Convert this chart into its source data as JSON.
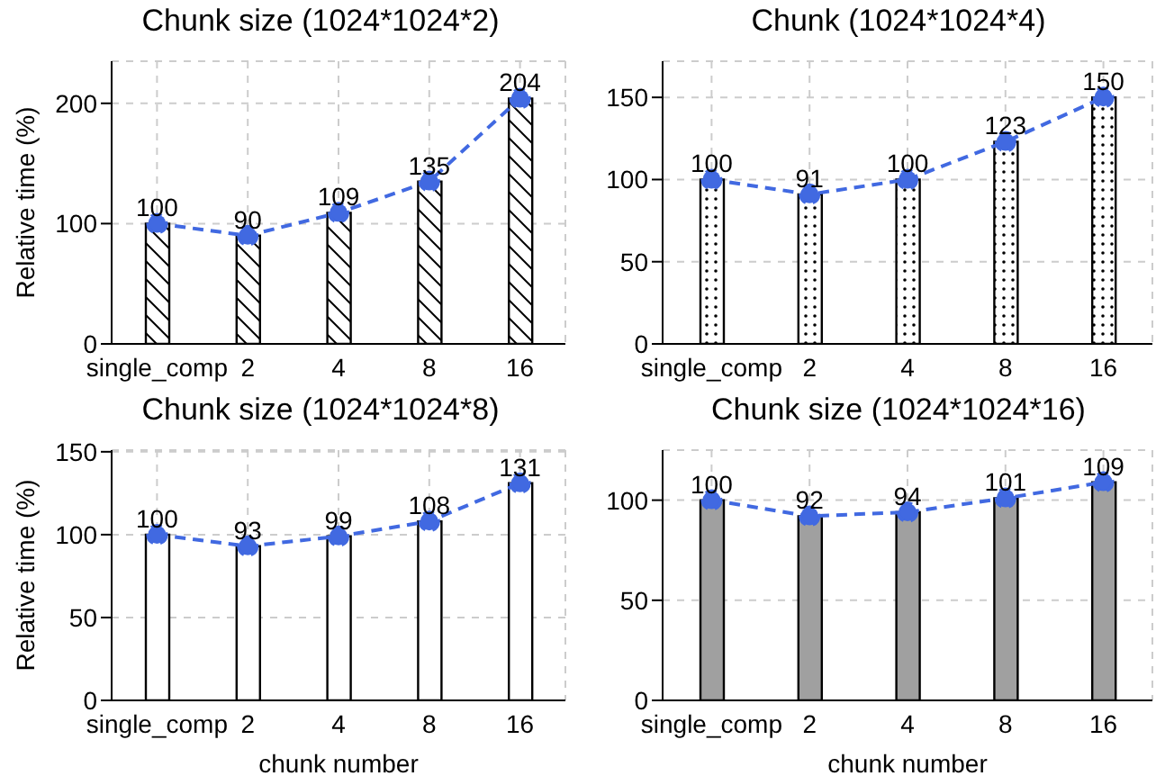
{
  "chart_data": [
    {
      "type": "bar",
      "title": "Chunk size (1024*1024*2)",
      "ylabel": "Relative time (%)",
      "categories": [
        "single_comp",
        "2",
        "4",
        "8",
        "16"
      ],
      "ylim": [
        0,
        235
      ],
      "yticks": [
        0,
        100,
        200
      ],
      "grid": true,
      "series": [
        {
          "color": "#000000",
          "values": [
            100,
            90,
            109,
            135,
            204
          ]
        },
        {
          "type": "line",
          "color": "#4169e1",
          "marker": "circle",
          "line_style": "dashed",
          "values": [
            100,
            90,
            109,
            135,
            204
          ],
          "value_labels": [
            "100",
            "90",
            "109",
            "135",
            "204"
          ]
        }
      ]
    },
    {
      "type": "bar",
      "title": "Chunk (1024*1024*4)",
      "categories": [
        "single_comp",
        "2",
        "4",
        "8",
        "16"
      ],
      "ylim": [
        0,
        172
      ],
      "yticks": [
        0,
        50,
        100,
        150
      ],
      "grid": true,
      "series": [
        {
          "color": "#000000",
          "values": [
            100,
            91,
            100,
            123,
            150
          ]
        },
        {
          "type": "line",
          "color": "#4169e1",
          "marker": "circle",
          "line_style": "dashed",
          "values": [
            100,
            91,
            100,
            123,
            150
          ],
          "value_labels": [
            "100",
            "91",
            "100",
            "123",
            "150"
          ]
        }
      ]
    },
    {
      "type": "bar",
      "title": "Chunk size (1024*1024*8)",
      "ylabel": "Relative time (%)",
      "xlabel": "chunk number",
      "categories": [
        "single_comp",
        "2",
        "4",
        "8",
        "16"
      ],
      "ylim": [
        0,
        151
      ],
      "yticks": [
        0,
        50,
        100,
        150
      ],
      "grid": true,
      "series": [
        {
          "color": "#ffffff",
          "values": [
            100,
            93,
            99,
            108,
            131
          ]
        },
        {
          "type": "line",
          "color": "#4169e1",
          "marker": "circle",
          "line_style": "dashed",
          "values": [
            100,
            93,
            99,
            108,
            131
          ],
          "value_labels": [
            "100",
            "93",
            "99",
            "108",
            "131"
          ]
        }
      ]
    },
    {
      "type": "bar",
      "title": "Chunk size (1024*1024*16)",
      "xlabel": "chunk number",
      "categories": [
        "single_comp",
        "2",
        "4",
        "8",
        "16"
      ],
      "ylim": [
        0,
        125
      ],
      "yticks": [
        0,
        50,
        100
      ],
      "grid": true,
      "series": [
        {
          "color": "#a0a0a0",
          "values": [
            100,
            92,
            94,
            101,
            109
          ]
        },
        {
          "type": "line",
          "color": "#4169e1",
          "marker": "circle",
          "line_style": "dashed",
          "values": [
            100,
            92,
            94,
            101,
            109
          ],
          "value_labels": [
            "100",
            "92",
            "94",
            "101",
            "109"
          ]
        }
      ]
    }
  ]
}
